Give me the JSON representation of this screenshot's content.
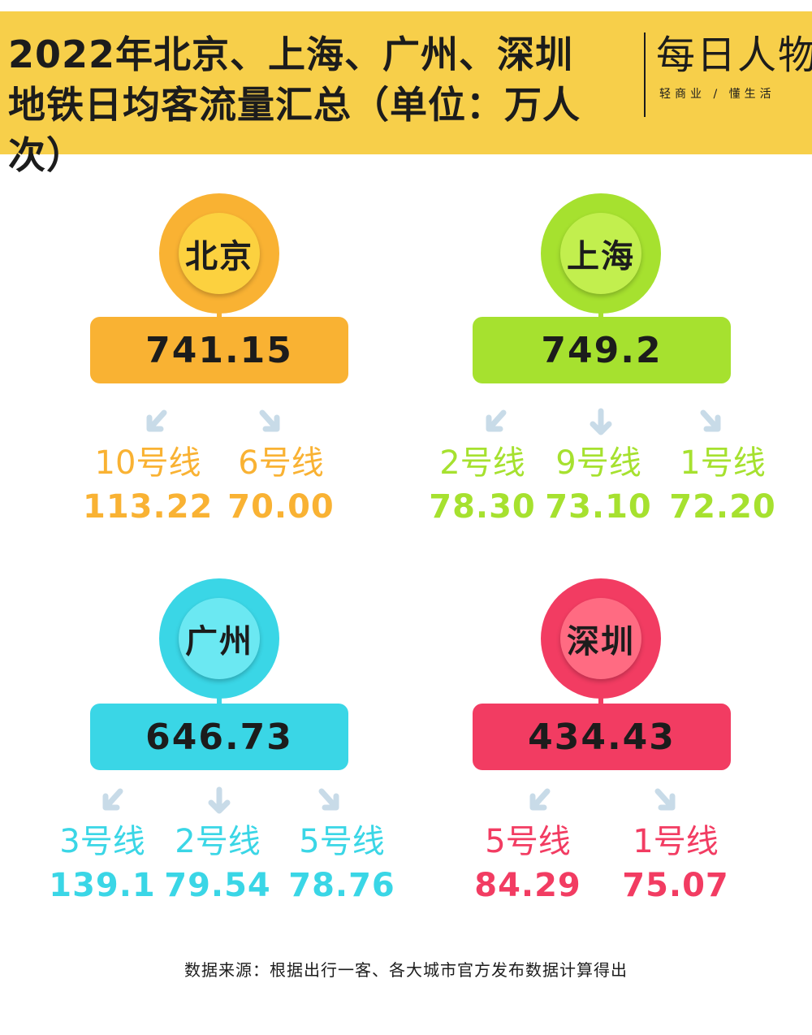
{
  "header": {
    "title_line1": "2022年北京、上海、广州、深圳",
    "title_line2": "地铁日均客流量汇总（单位：万人次）",
    "logo_name": "每日人物",
    "logo_slogan": "轻商业 / 懂生活",
    "background_color": "#f7cf4a"
  },
  "cities": [
    {
      "name": "北京",
      "total": "741.15",
      "color": "#f9b233",
      "light_color": "#fcd13f",
      "lines": [
        {
          "name": "10号线",
          "value": "113.22"
        },
        {
          "name": "6号线",
          "value": "70.00"
        }
      ]
    },
    {
      "name": "上海",
      "total": "749.2",
      "color": "#a6e12f",
      "light_color": "#c2ef4e",
      "lines": [
        {
          "name": "2号线",
          "value": "78.30"
        },
        {
          "name": "9号线",
          "value": "73.10"
        },
        {
          "name": "1号线",
          "value": "72.20"
        }
      ]
    },
    {
      "name": "广州",
      "total": "646.73",
      "color": "#3ad6e6",
      "light_color": "#6be8f2",
      "lines": [
        {
          "name": "3号线",
          "value": "139.1"
        },
        {
          "name": "2号线",
          "value": "79.54"
        },
        {
          "name": "5号线",
          "value": "78.76"
        }
      ]
    },
    {
      "name": "深圳",
      "total": "434.43",
      "color": "#f23c62",
      "light_color": "#ff6b82",
      "lines": [
        {
          "name": "5号线",
          "value": "84.29"
        },
        {
          "name": "1号线",
          "value": "75.07"
        }
      ]
    }
  ],
  "arrow_color": "#c8dbe8",
  "footer": {
    "source": "数据来源：根据出行一客、各大城市官方发布数据计算得出"
  }
}
